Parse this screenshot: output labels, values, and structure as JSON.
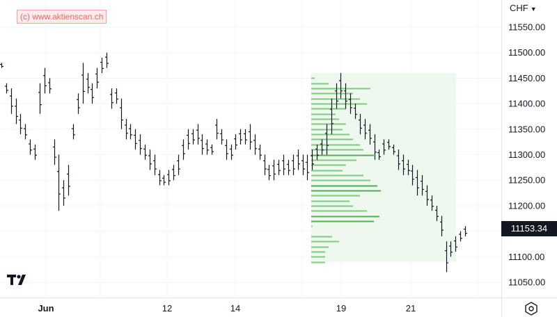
{
  "watermark": "(c) www.aktienscan.ch",
  "currency": "CHF",
  "last_price": "11153.34",
  "colors": {
    "bar": "#131722",
    "profile": "#7fc97f",
    "profile_strong": "#4caf50",
    "va_fill": "#eef8ee",
    "grid": "#f0f3fa"
  },
  "icons": {
    "settings": "settings-icon",
    "currency_dropdown": "chevron-down-icon",
    "logo": "tradingview-logo-icon"
  },
  "chart_data": {
    "type": "ohlc",
    "y_axis": {
      "range": [
        11020,
        11600
      ],
      "ticks": [
        "11550.00",
        "11500.00",
        "11450.00",
        "11400.00",
        "11350.00",
        "11300.00",
        "11250.00",
        "11200.00",
        "11100.00",
        "11050.00"
      ],
      "tick_values": [
        11550,
        11500,
        11450,
        11400,
        11350,
        11300,
        11250,
        11200,
        11100,
        11050
      ]
    },
    "x_axis": {
      "labels": [
        "Jun",
        "12",
        "14",
        "19",
        "21"
      ]
    },
    "series": [
      {
        "values": [
          {
            "h": 11480,
            "l": 11470
          },
          {
            "h": 11440,
            "l": 11420
          },
          {
            "h": 11430,
            "l": 11380
          },
          {
            "h": 11410,
            "l": 11360
          },
          {
            "h": 11380,
            "l": 11340
          },
          {
            "h": 11360,
            "l": 11330
          },
          {
            "h": 11330,
            "l": 11300
          },
          {
            "h": 11320,
            "l": 11290
          },
          {
            "h": 11440,
            "l": 11380
          },
          {
            "h": 11470,
            "l": 11420
          },
          {
            "h": 11450,
            "l": 11420
          },
          {
            "h": 11330,
            "l": 11280
          },
          {
            "h": 11300,
            "l": 11190
          },
          {
            "h": 11250,
            "l": 11200
          },
          {
            "h": 11280,
            "l": 11220
          },
          {
            "h": 11360,
            "l": 11330
          },
          {
            "h": 11420,
            "l": 11380
          },
          {
            "h": 11480,
            "l": 11400
          },
          {
            "h": 11460,
            "l": 11420
          },
          {
            "h": 11440,
            "l": 11400
          },
          {
            "h": 11470,
            "l": 11430
          },
          {
            "h": 11490,
            "l": 11460
          },
          {
            "h": 11500,
            "l": 11470
          },
          {
            "h": 11430,
            "l": 11390
          },
          {
            "h": 11430,
            "l": 11400
          },
          {
            "h": 11410,
            "l": 11350
          },
          {
            "h": 11370,
            "l": 11330
          },
          {
            "h": 11360,
            "l": 11330
          },
          {
            "h": 11350,
            "l": 11310
          },
          {
            "h": 11340,
            "l": 11300
          },
          {
            "h": 11320,
            "l": 11290
          },
          {
            "h": 11310,
            "l": 11270
          },
          {
            "h": 11300,
            "l": 11260
          },
          {
            "h": 11270,
            "l": 11240
          },
          {
            "h": 11260,
            "l": 11240
          },
          {
            "h": 11270,
            "l": 11240
          },
          {
            "h": 11280,
            "l": 11250
          },
          {
            "h": 11300,
            "l": 11260
          },
          {
            "h": 11330,
            "l": 11290
          },
          {
            "h": 11350,
            "l": 11310
          },
          {
            "h": 11350,
            "l": 11320
          },
          {
            "h": 11360,
            "l": 11320
          },
          {
            "h": 11340,
            "l": 11300
          },
          {
            "h": 11330,
            "l": 11300
          },
          {
            "h": 11320,
            "l": 11300
          },
          {
            "h": 11370,
            "l": 11330
          },
          {
            "h": 11350,
            "l": 11320
          },
          {
            "h": 11330,
            "l": 11290
          },
          {
            "h": 11320,
            "l": 11290
          },
          {
            "h": 11340,
            "l": 11310
          },
          {
            "h": 11350,
            "l": 11320
          },
          {
            "h": 11350,
            "l": 11320
          },
          {
            "h": 11360,
            "l": 11310
          },
          {
            "h": 11340,
            "l": 11300
          },
          {
            "h": 11320,
            "l": 11290
          },
          {
            "h": 11300,
            "l": 11260
          },
          {
            "h": 11280,
            "l": 11250
          },
          {
            "h": 11290,
            "l": 11250
          },
          {
            "h": 11290,
            "l": 11260
          },
          {
            "h": 11300,
            "l": 11260
          },
          {
            "h": 11290,
            "l": 11260
          },
          {
            "h": 11300,
            "l": 11260
          },
          {
            "h": 11310,
            "l": 11270
          },
          {
            "h": 11300,
            "l": 11260
          },
          {
            "h": 11300,
            "l": 11250
          },
          {
            "h": 11310,
            "l": 11270
          },
          {
            "h": 11320,
            "l": 11290
          },
          {
            "h": 11330,
            "l": 11300
          },
          {
            "h": 11360,
            "l": 11300
          },
          {
            "h": 11410,
            "l": 11340
          },
          {
            "h": 11440,
            "l": 11390
          },
          {
            "h": 11460,
            "l": 11410
          },
          {
            "h": 11440,
            "l": 11390
          },
          {
            "h": 11420,
            "l": 11380
          },
          {
            "h": 11400,
            "l": 11370
          },
          {
            "h": 11380,
            "l": 11340
          },
          {
            "h": 11370,
            "l": 11330
          },
          {
            "h": 11360,
            "l": 11320
          },
          {
            "h": 11340,
            "l": 11290
          },
          {
            "h": 11310,
            "l": 11290
          },
          {
            "h": 11330,
            "l": 11300
          },
          {
            "h": 11330,
            "l": 11310
          },
          {
            "h": 11320,
            "l": 11300
          },
          {
            "h": 11310,
            "l": 11270
          },
          {
            "h": 11300,
            "l": 11260
          },
          {
            "h": 11290,
            "l": 11260
          },
          {
            "h": 11280,
            "l": 11240
          },
          {
            "h": 11270,
            "l": 11220
          },
          {
            "h": 11260,
            "l": 11220
          },
          {
            "h": 11240,
            "l": 11200
          },
          {
            "h": 11220,
            "l": 11190
          },
          {
            "h": 11200,
            "l": 11170
          },
          {
            "h": 11180,
            "l": 11140
          },
          {
            "h": 11130,
            "l": 11070
          },
          {
            "h": 11130,
            "l": 11100
          },
          {
            "h": 11140,
            "l": 11110
          },
          {
            "h": 11150,
            "l": 11130
          },
          {
            "h": 11160,
            "l": 11140
          }
        ]
      }
    ],
    "volume_profile": {
      "fill_range": [
        11090,
        11460
      ],
      "levels": [
        {
          "price": 11450,
          "len": 0.05
        },
        {
          "price": 11440,
          "len": 0.25
        },
        {
          "price": 11430,
          "len": 0.85
        },
        {
          "price": 11420,
          "len": 0.6
        },
        {
          "price": 11410,
          "len": 0.7
        },
        {
          "price": 11400,
          "len": 0.8
        },
        {
          "price": 11390,
          "len": 0.5
        },
        {
          "price": 11380,
          "len": 0.35
        },
        {
          "price": 11370,
          "len": 0.4
        },
        {
          "price": 11360,
          "len": 0.5
        },
        {
          "price": 11350,
          "len": 0.45
        },
        {
          "price": 11340,
          "len": 0.55
        },
        {
          "price": 11330,
          "len": 0.6
        },
        {
          "price": 11320,
          "len": 0.7
        },
        {
          "price": 11310,
          "len": 0.75
        },
        {
          "price": 11300,
          "len": 0.9
        },
        {
          "price": 11290,
          "len": 0.65
        },
        {
          "price": 11280,
          "len": 0.5
        },
        {
          "price": 11270,
          "len": 0.45
        },
        {
          "price": 11260,
          "len": 0.75
        },
        {
          "price": 11250,
          "len": 0.85
        },
        {
          "price": 11240,
          "len": 0.95
        },
        {
          "price": 11230,
          "len": 1.0
        },
        {
          "price": 11220,
          "len": 0.7
        },
        {
          "price": 11210,
          "len": 0.55
        },
        {
          "price": 11200,
          "len": 0.6
        },
        {
          "price": 11190,
          "len": 0.8
        },
        {
          "price": 11180,
          "len": 0.98
        },
        {
          "price": 11170,
          "len": 0.9
        },
        {
          "price": 11160,
          "len": 0.02
        },
        {
          "price": 11140,
          "len": 0.3
        },
        {
          "price": 11130,
          "len": 0.4
        },
        {
          "price": 11120,
          "len": 0.25
        },
        {
          "price": 11110,
          "len": 0.2
        },
        {
          "price": 11100,
          "len": 0.2
        },
        {
          "price": 11090,
          "len": 0.2
        }
      ]
    }
  }
}
